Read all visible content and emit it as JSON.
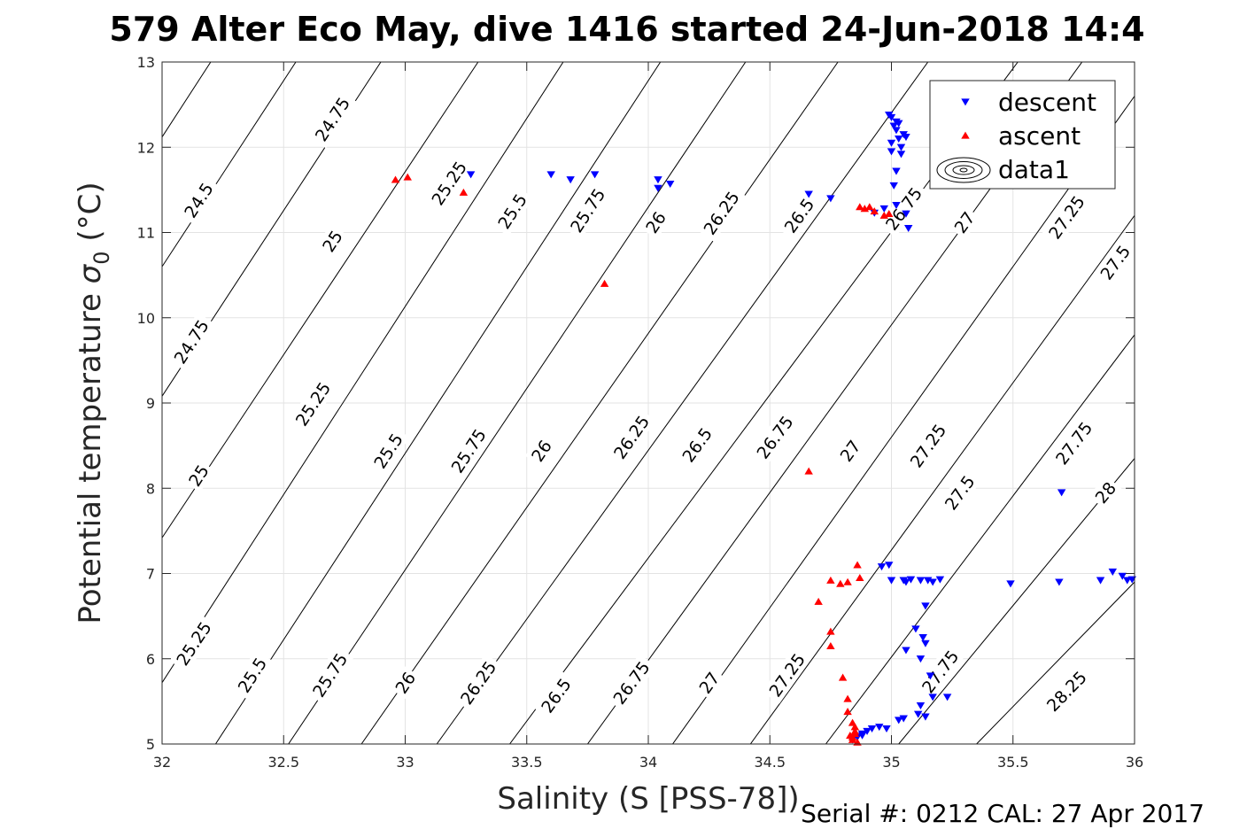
{
  "chart_data": {
    "type": "scatter",
    "title": "579 Alter Eco May, dive 1416 started 24-Jun-2018 14:4",
    "xlabel": "Salinity (S [PSS-78])",
    "ylabel_main": "Potential temperature ",
    "ylabel_sigma": "σ",
    "ylabel_sub": "0",
    "ylabel_unit": " (°C)",
    "footer": "Serial #: 0212  CAL: 27 Apr 2017",
    "xlim": [
      32,
      36
    ],
    "ylim": [
      5,
      13
    ],
    "xticks": [
      32,
      32.5,
      33,
      33.5,
      34,
      34.5,
      35,
      35.5,
      36
    ],
    "yticks": [
      5,
      6,
      7,
      8,
      9,
      10,
      11,
      12,
      13
    ],
    "grid": true,
    "legend_position": "top-right",
    "legend": [
      {
        "name": "descent",
        "marker": "triangle-down",
        "color": "#0000ff"
      },
      {
        "name": "ascent",
        "marker": "triangle-up",
        "color": "#ff0000"
      },
      {
        "name": "data1",
        "marker": "contour",
        "color": "#000000"
      }
    ],
    "contours": [
      {
        "level": "24.5",
        "points": [
          [
            32,
            12.12
          ],
          [
            32.2,
            13.0
          ]
        ],
        "label_at": [
          32.15,
          11.38
        ]
      },
      {
        "level": "24.75",
        "points": [
          [
            32,
            10.6
          ],
          [
            32.55,
            13.0
          ]
        ],
        "label_at": [
          32.7,
          12.33
        ]
      },
      {
        "level": "25",
        "points": [
          [
            32,
            9.08
          ],
          [
            32.9,
            13.0
          ]
        ],
        "label_at": [
          32.7,
          10.9
        ]
      },
      {
        "level": "25.25",
        "points": [
          [
            32,
            7.42
          ],
          [
            33.3,
            13.0
          ]
        ],
        "label_at": [
          33.18,
          11.58
        ]
      },
      {
        "level": "25.5",
        "points": [
          [
            32,
            5.72
          ],
          [
            33.65,
            13.0
          ]
        ],
        "label_at": [
          33.44,
          11.25
        ]
      },
      {
        "level": "25.75",
        "points": [
          [
            32.22,
            5.0
          ],
          [
            34.05,
            13.0
          ]
        ],
        "label_at": [
          33.75,
          11.26
        ]
      },
      {
        "level": "26",
        "points": [
          [
            32.52,
            5.0
          ],
          [
            34.4,
            13.0
          ]
        ],
        "label_at": [
          34.03,
          11.12
        ]
      },
      {
        "level": "26.25",
        "points": [
          [
            32.82,
            5.0
          ],
          [
            34.78,
            13.0
          ]
        ],
        "label_at": [
          34.3,
          11.23
        ]
      },
      {
        "level": "26.5",
        "points": [
          [
            33.13,
            5.0
          ],
          [
            35.15,
            13.0
          ]
        ],
        "label_at": [
          34.62,
          11.2
        ]
      },
      {
        "level": "26.75",
        "points": [
          [
            33.43,
            5.0
          ],
          [
            35.52,
            13.0
          ]
        ],
        "label_at": [
          35.05,
          11.28
        ]
      },
      {
        "level": "27",
        "points": [
          [
            33.75,
            5.0
          ],
          [
            36.0,
            13.85
          ]
        ],
        "label_at": [
          35.3,
          11.12
        ]
      },
      {
        "level": "27.25",
        "points": [
          [
            34.1,
            5.0
          ],
          [
            36.0,
            12.6
          ]
        ],
        "label_at": [
          35.72,
          11.18
        ]
      },
      {
        "level": "27.5",
        "points": [
          [
            34.42,
            5.0
          ],
          [
            36.0,
            11.2
          ]
        ],
        "label_at": [
          35.92,
          10.65
        ]
      },
      {
        "level": "27.75",
        "points": [
          [
            34.73,
            5.0
          ],
          [
            36.0,
            9.8
          ]
        ],
        "label_at": [
          35.75,
          8.53
        ]
      },
      {
        "level": "28",
        "points": [
          [
            35.03,
            5.0
          ],
          [
            36.0,
            8.35
          ]
        ],
        "label_at": [
          35.88,
          7.95
        ]
      },
      {
        "level": "28.25",
        "points": [
          [
            35.35,
            5.0
          ],
          [
            36.0,
            6.9
          ]
        ],
        "label_at": [
          35.72,
          5.62
        ]
      }
    ],
    "extra_labels": [
      {
        "level": "24.75",
        "at": [
          32.12,
          9.72
        ]
      },
      {
        "level": "25",
        "at": [
          32.15,
          8.15
        ]
      },
      {
        "level": "25.25",
        "at": [
          32.13,
          6.18
        ]
      },
      {
        "level": "25.25",
        "at": [
          32.62,
          8.99
        ]
      },
      {
        "level": "25.5",
        "at": [
          32.37,
          5.81
        ]
      },
      {
        "level": "25.5",
        "at": [
          32.93,
          8.44
        ]
      },
      {
        "level": "25.75",
        "at": [
          32.69,
          5.81
        ]
      },
      {
        "level": "25.75",
        "at": [
          33.26,
          8.44
        ]
      },
      {
        "level": "26",
        "at": [
          33.0,
          5.72
        ]
      },
      {
        "level": "26",
        "at": [
          33.56,
          8.44
        ]
      },
      {
        "level": "26.25",
        "at": [
          33.3,
          5.72
        ]
      },
      {
        "level": "26.25",
        "at": [
          33.93,
          8.6
        ]
      },
      {
        "level": "26.5",
        "at": [
          33.62,
          5.57
        ]
      },
      {
        "level": "26.5",
        "at": [
          34.2,
          8.51
        ]
      },
      {
        "level": "26.75",
        "at": [
          33.93,
          5.72
        ]
      },
      {
        "level": "26.75",
        "at": [
          34.52,
          8.6
        ]
      },
      {
        "level": "27",
        "at": [
          34.25,
          5.72
        ]
      },
      {
        "level": "27",
        "at": [
          34.83,
          8.44
        ]
      },
      {
        "level": "27.25",
        "at": [
          34.57,
          5.81
        ]
      },
      {
        "level": "27.25",
        "at": [
          35.15,
          8.5
        ]
      },
      {
        "level": "27.5",
        "at": [
          35.28,
          7.95
        ]
      },
      {
        "level": "27.75",
        "at": [
          35.2,
          5.85
        ]
      }
    ],
    "series": [
      {
        "name": "descent",
        "marker": "triangle-down",
        "color": "#0000ff",
        "points": [
          [
            33.27,
            11.68
          ],
          [
            33.6,
            11.68
          ],
          [
            33.68,
            11.62
          ],
          [
            33.78,
            11.68
          ],
          [
            34.04,
            11.62
          ],
          [
            34.04,
            11.52
          ],
          [
            34.09,
            11.57
          ],
          [
            34.66,
            11.45
          ],
          [
            34.75,
            11.4
          ],
          [
            34.93,
            11.23
          ],
          [
            34.97,
            11.28
          ],
          [
            35.02,
            11.32
          ],
          [
            35.06,
            11.22
          ],
          [
            35.07,
            11.05
          ],
          [
            34.99,
            12.38
          ],
          [
            35.0,
            12.35
          ],
          [
            35.02,
            12.3
          ],
          [
            35.03,
            12.28
          ],
          [
            35.02,
            12.2
          ],
          [
            35.03,
            12.1
          ],
          [
            35.04,
            12.0
          ],
          [
            35.04,
            11.92
          ],
          [
            35.05,
            12.15
          ],
          [
            35.06,
            12.12
          ],
          [
            35.0,
            11.95
          ],
          [
            35.02,
            11.72
          ],
          [
            35.01,
            11.55
          ],
          [
            35.0,
            12.05
          ],
          [
            35.01,
            12.25
          ],
          [
            34.99,
            7.1
          ],
          [
            34.96,
            7.08
          ],
          [
            35.0,
            6.92
          ],
          [
            35.05,
            6.92
          ],
          [
            35.08,
            6.93
          ],
          [
            35.12,
            6.92
          ],
          [
            35.15,
            6.92
          ],
          [
            35.17,
            6.9
          ],
          [
            35.2,
            6.93
          ],
          [
            35.06,
            6.9
          ],
          [
            35.49,
            6.88
          ],
          [
            35.69,
            6.9
          ],
          [
            35.86,
            6.92
          ],
          [
            35.91,
            7.02
          ],
          [
            35.95,
            6.97
          ],
          [
            35.97,
            6.92
          ],
          [
            35.99,
            6.93
          ],
          [
            35.14,
            6.62
          ],
          [
            35.1,
            6.35
          ],
          [
            35.13,
            6.25
          ],
          [
            35.14,
            6.18
          ],
          [
            35.06,
            6.1
          ],
          [
            35.12,
            6.0
          ],
          [
            35.16,
            5.8
          ],
          [
            35.17,
            5.55
          ],
          [
            35.23,
            5.55
          ],
          [
            35.12,
            5.45
          ],
          [
            35.11,
            5.35
          ],
          [
            35.14,
            5.32
          ],
          [
            35.05,
            5.3
          ],
          [
            35.03,
            5.28
          ],
          [
            34.98,
            5.18
          ],
          [
            34.95,
            5.2
          ],
          [
            34.92,
            5.18
          ],
          [
            34.9,
            5.15
          ],
          [
            34.88,
            5.1
          ],
          [
            34.86,
            5.08
          ],
          [
            34.84,
            5.05
          ],
          [
            34.88,
            5.12
          ],
          [
            35.7,
            7.95
          ]
        ]
      },
      {
        "name": "ascent",
        "marker": "triangle-up",
        "color": "#ff0000",
        "points": [
          [
            32.96,
            11.62
          ],
          [
            33.01,
            11.65
          ],
          [
            33.24,
            11.47
          ],
          [
            33.82,
            10.4
          ],
          [
            34.66,
            8.2
          ],
          [
            34.87,
            11.3
          ],
          [
            34.89,
            11.28
          ],
          [
            34.91,
            11.3
          ],
          [
            34.93,
            11.25
          ],
          [
            34.97,
            11.2
          ],
          [
            34.99,
            11.22
          ],
          [
            34.86,
            7.1
          ],
          [
            34.82,
            6.9
          ],
          [
            34.79,
            6.88
          ],
          [
            34.87,
            6.95
          ],
          [
            34.75,
            6.92
          ],
          [
            34.7,
            6.67
          ],
          [
            34.75,
            6.32
          ],
          [
            34.75,
            6.15
          ],
          [
            34.8,
            5.78
          ],
          [
            34.82,
            5.53
          ],
          [
            34.82,
            5.38
          ],
          [
            34.84,
            5.25
          ],
          [
            34.85,
            5.2
          ],
          [
            34.85,
            5.12
          ],
          [
            34.84,
            5.08
          ],
          [
            34.84,
            5.05
          ],
          [
            34.86,
            5.02
          ],
          [
            34.85,
            5.15
          ],
          [
            34.83,
            5.1
          ]
        ]
      }
    ]
  }
}
